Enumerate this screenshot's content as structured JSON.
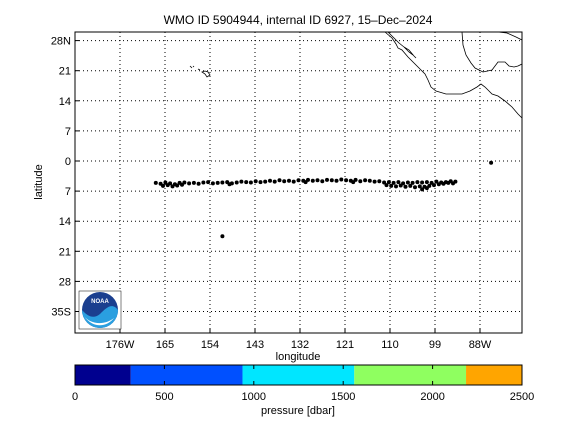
{
  "title": "WMO ID 5904944, internal ID 6927, 15–Dec–2024",
  "map": {
    "xlabel": "longitude",
    "ylabel": "latitude",
    "lon_ticks": [
      "176W",
      "165",
      "154",
      "143",
      "132",
      "121",
      "110",
      "99",
      "88W"
    ],
    "lat_ticks": [
      "28N",
      "21",
      "14",
      "7",
      "0",
      "7",
      "14",
      "21",
      "28",
      "35S"
    ],
    "lat_values": [
      28,
      21,
      14,
      7,
      0,
      -7,
      -14,
      -21,
      -28,
      -35
    ],
    "grid": true,
    "logo_text": "NOAA",
    "logo_position": "bottom-left"
  },
  "colorbar": {
    "label": "pressure [dbar]",
    "ticks": [
      "0",
      "500",
      "1000",
      "1500",
      "2000",
      "2500"
    ],
    "tick_values": [
      0,
      500,
      1000,
      1500,
      2000,
      2500
    ],
    "range": [
      0,
      2500
    ],
    "segments": [
      {
        "from": 0,
        "to": 312,
        "color": "#00008f"
      },
      {
        "from": 312,
        "to": 937,
        "color": "#0050ff"
      },
      {
        "from": 937,
        "to": 1562,
        "color": "#00e6ff"
      },
      {
        "from": 1562,
        "to": 2187,
        "color": "#8fff60"
      },
      {
        "from": 2187,
        "to": 2500,
        "color": "#ffa500"
      }
    ]
  },
  "chart_data": {
    "type": "scatter",
    "xlim_deg_east": [
      178,
      272
    ],
    "ylim_lat": [
      -40,
      30
    ],
    "series": [
      {
        "points": [
          [
            195,
            -5.1
          ],
          [
            196,
            -5.3
          ],
          [
            197,
            -5.0
          ],
          [
            198,
            -5.2
          ],
          [
            199,
            -5.4
          ],
          [
            200,
            -5.1
          ],
          [
            201,
            -5.0
          ],
          [
            202,
            -5.2
          ],
          [
            203,
            -5.1
          ],
          [
            204,
            -5.3
          ],
          [
            205,
            -5.0
          ],
          [
            206,
            -4.9
          ],
          [
            207,
            -5.2
          ],
          [
            208,
            -5.1
          ],
          [
            209,
            -5.0
          ],
          [
            210,
            -4.9
          ],
          [
            211,
            -5.2
          ],
          [
            212,
            -5.0
          ],
          [
            213,
            -4.8
          ],
          [
            214,
            -4.9
          ],
          [
            215,
            -5.0
          ],
          [
            216,
            -4.7
          ],
          [
            217,
            -4.9
          ],
          [
            218,
            -4.8
          ],
          [
            219,
            -4.6
          ],
          [
            220,
            -4.8
          ],
          [
            221,
            -4.5
          ],
          [
            222,
            -4.7
          ],
          [
            223,
            -4.6
          ],
          [
            224,
            -4.8
          ],
          [
            225,
            -4.5
          ],
          [
            226,
            -4.6
          ],
          [
            227,
            -4.4
          ],
          [
            228,
            -4.6
          ],
          [
            229,
            -4.5
          ],
          [
            230,
            -4.7
          ],
          [
            231,
            -4.4
          ],
          [
            232,
            -4.5
          ],
          [
            233,
            -4.6
          ],
          [
            234,
            -4.3
          ],
          [
            235,
            -4.5
          ],
          [
            236,
            -4.6
          ],
          [
            237,
            -4.4
          ],
          [
            238,
            -4.7
          ],
          [
            239,
            -4.5
          ],
          [
            240,
            -4.6
          ],
          [
            241,
            -4.8
          ],
          [
            242,
            -4.7
          ],
          [
            243,
            -5.0
          ],
          [
            244,
            -4.9
          ],
          [
            245,
            -5.1
          ],
          [
            246,
            -4.9
          ],
          [
            247,
            -5.2
          ],
          [
            248,
            -5.0
          ],
          [
            249,
            -5.1
          ],
          [
            250,
            -4.9
          ],
          [
            251,
            -5.0
          ],
          [
            252,
            -4.9
          ],
          [
            253,
            -5.1
          ],
          [
            254,
            -4.8
          ],
          [
            255,
            -5.0
          ],
          [
            256,
            -4.9
          ],
          [
            257,
            -4.7
          ],
          [
            258,
            -4.8
          ],
          [
            243.5,
            -5.6
          ],
          [
            244.5,
            -5.8
          ],
          [
            245.5,
            -5.9
          ],
          [
            246.5,
            -5.7
          ],
          [
            247.5,
            -6.0
          ],
          [
            248.5,
            -5.8
          ],
          [
            249.5,
            -6.1
          ],
          [
            250.5,
            -5.9
          ],
          [
            251.5,
            -6.0
          ],
          [
            252.5,
            -5.8
          ],
          [
            253.5,
            -5.6
          ],
          [
            254.5,
            -5.4
          ],
          [
            255.5,
            -5.3
          ],
          [
            256.5,
            -5.1
          ],
          [
            257.5,
            -5.2
          ],
          [
            196.5,
            -5.8
          ],
          [
            197.5,
            -5.6
          ],
          [
            198.5,
            -5.9
          ],
          [
            199.5,
            -5.7
          ],
          [
            200.5,
            -5.5
          ],
          [
            251,
            -6.6
          ],
          [
            252,
            -6.3
          ],
          [
            210.5,
            -5.4
          ],
          [
            226.5,
            -4.9
          ],
          [
            236.5,
            -4.9
          ],
          [
            209,
            -17.5
          ],
          [
            265.5,
            -0.4
          ]
        ]
      }
    ]
  }
}
